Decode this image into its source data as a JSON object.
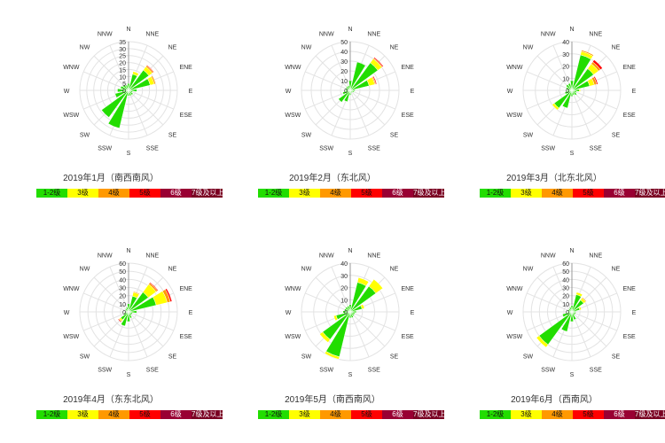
{
  "legend": {
    "items": [
      {
        "label": "1-2级",
        "color": "#22dd00"
      },
      {
        "label": "3级",
        "color": "#ffff00"
      },
      {
        "label": "4级",
        "color": "#ff9900"
      },
      {
        "label": "5级",
        "color": "#ff0000"
      },
      {
        "label": "6级",
        "color": "#990033"
      },
      {
        "label": "7级及以上",
        "color": "#7a0022"
      }
    ]
  },
  "directions": [
    "N",
    "NNE",
    "NE",
    "ENE",
    "E",
    "ESE",
    "SE",
    "SSE",
    "S",
    "SSW",
    "SW",
    "WSW",
    "W",
    "WNW",
    "NW",
    "NNW"
  ],
  "chart_data": [
    {
      "type": "rose",
      "title": "2019年1月（南西南风）",
      "rmax": 35,
      "ticks": [
        0,
        5,
        10,
        15,
        20,
        25,
        30,
        35
      ],
      "series": [
        {
          "name": "1-2级",
          "values": [
            5,
            12,
            18,
            16,
            6,
            3,
            4,
            4,
            4,
            28,
            24,
            10,
            8,
            6,
            5,
            4
          ]
        },
        {
          "name": "3级",
          "values": [
            0,
            2,
            3,
            3,
            0,
            0,
            0,
            0,
            0,
            0,
            0,
            0,
            0,
            0,
            0,
            0
          ]
        },
        {
          "name": "4级",
          "values": [
            0,
            0,
            1,
            1,
            0,
            0,
            0,
            0,
            0,
            0,
            0,
            0,
            0,
            0,
            0,
            0
          ]
        },
        {
          "name": "5级",
          "values": [
            0,
            0,
            0.5,
            0,
            0,
            0,
            0,
            0,
            0,
            0,
            0,
            0,
            0,
            0,
            0,
            0
          ]
        },
        {
          "name": "6级",
          "values": [
            0,
            0,
            0,
            0,
            0,
            0,
            0,
            0,
            0,
            0,
            0,
            0,
            0,
            0,
            0,
            0
          ]
        },
        {
          "name": "7级及以上",
          "values": [
            0,
            0,
            0,
            0,
            0,
            0,
            0,
            0,
            0,
            0,
            0,
            0,
            0,
            0,
            0,
            0
          ]
        }
      ]
    },
    {
      "type": "rose",
      "title": "2019年2月（东北风）",
      "rmax": 50,
      "ticks": [
        0,
        10,
        20,
        30,
        40,
        50
      ],
      "series": [
        {
          "name": "1-2级",
          "values": [
            10,
            30,
            35,
            20,
            5,
            4,
            3,
            3,
            5,
            12,
            15,
            8,
            5,
            5,
            5,
            5
          ]
        },
        {
          "name": "3级",
          "values": [
            0,
            0,
            5,
            6,
            0,
            0,
            0,
            0,
            0,
            0,
            0,
            0,
            0,
            0,
            0,
            0
          ]
        },
        {
          "name": "4级",
          "values": [
            0,
            0,
            1,
            1,
            0,
            0,
            0,
            0,
            0,
            0,
            0,
            0,
            0,
            0,
            0,
            0
          ]
        },
        {
          "name": "5级",
          "values": [
            0,
            0,
            1,
            1,
            0,
            0,
            0,
            0,
            0,
            0,
            0,
            0,
            0,
            0,
            0,
            0
          ]
        },
        {
          "name": "6级",
          "values": [
            0,
            0,
            0,
            0,
            0,
            0,
            0,
            0,
            0,
            0,
            0,
            0,
            0,
            0,
            0,
            0
          ]
        },
        {
          "name": "7级及以上",
          "values": [
            0,
            0,
            0,
            0,
            0,
            0,
            0,
            0,
            0,
            0,
            0,
            0,
            0,
            0,
            0,
            0
          ]
        }
      ]
    },
    {
      "type": "rose",
      "title": "2019年3月（北东北风）",
      "rmax": 40,
      "ticks": [
        0,
        10,
        20,
        30,
        40
      ],
      "series": [
        {
          "name": "1-2级",
          "values": [
            8,
            30,
            22,
            15,
            6,
            4,
            5,
            4,
            5,
            15,
            18,
            6,
            4,
            5,
            6,
            6
          ]
        },
        {
          "name": "3级",
          "values": [
            0,
            3,
            5,
            4,
            1,
            0,
            0,
            0,
            0,
            0,
            2,
            0,
            0,
            0,
            0,
            0
          ]
        },
        {
          "name": "4级",
          "values": [
            0,
            1,
            2,
            2,
            0,
            0,
            0,
            0,
            0,
            0,
            0,
            0,
            0,
            0,
            0,
            0
          ]
        },
        {
          "name": "5级",
          "values": [
            0,
            0,
            2,
            1,
            0,
            0,
            0,
            0,
            0,
            0,
            0,
            0,
            0,
            0,
            0,
            0
          ]
        },
        {
          "name": "6级",
          "values": [
            0,
            0,
            0,
            0,
            0,
            0,
            0,
            0,
            0,
            0,
            0,
            0,
            0,
            0,
            0,
            0
          ]
        },
        {
          "name": "7级及以上",
          "values": [
            0,
            0,
            0,
            0,
            0,
            0,
            0,
            0,
            0,
            0,
            0,
            0,
            0,
            0,
            0,
            0
          ]
        }
      ]
    },
    {
      "type": "rose",
      "title": "2019年4月（东东北风）",
      "rmax": 60,
      "ticks": [
        0,
        10,
        20,
        30,
        40,
        50,
        60
      ],
      "series": [
        {
          "name": "1-2级",
          "values": [
            10,
            20,
            30,
            35,
            10,
            5,
            5,
            8,
            12,
            18,
            12,
            6,
            4,
            4,
            5,
            6
          ]
        },
        {
          "name": "3级",
          "values": [
            0,
            5,
            12,
            14,
            0,
            0,
            0,
            0,
            0,
            0,
            2,
            0,
            0,
            0,
            0,
            0
          ]
        },
        {
          "name": "4级",
          "values": [
            0,
            1,
            2,
            4,
            0,
            0,
            0,
            0,
            0,
            0,
            1,
            0,
            0,
            0,
            0,
            0
          ]
        },
        {
          "name": "5级",
          "values": [
            0,
            0,
            1,
            2,
            0,
            0,
            0,
            0,
            0,
            0,
            1,
            0,
            0,
            0,
            0,
            0
          ]
        },
        {
          "name": "6级",
          "values": [
            0,
            0,
            0,
            0,
            0,
            0,
            0,
            0,
            0,
            0,
            0,
            0,
            0,
            0,
            0,
            0
          ]
        },
        {
          "name": "7级及以上",
          "values": [
            0,
            0,
            0,
            0,
            0,
            0,
            0,
            0,
            0,
            0,
            0,
            0,
            0,
            0,
            0,
            0
          ]
        }
      ]
    },
    {
      "type": "rose",
      "title": "2019年5月（南西南风）",
      "rmax": 40,
      "ticks": [
        0,
        10,
        20,
        30,
        40
      ],
      "series": [
        {
          "name": "1-2级",
          "values": [
            6,
            25,
            26,
            10,
            5,
            4,
            4,
            5,
            5,
            38,
            28,
            12,
            6,
            5,
            5,
            5
          ]
        },
        {
          "name": "3级",
          "values": [
            0,
            4,
            7,
            2,
            0,
            0,
            0,
            0,
            0,
            2,
            3,
            2,
            0,
            0,
            0,
            0
          ]
        },
        {
          "name": "4级",
          "values": [
            0,
            0,
            0,
            0,
            0,
            0,
            0,
            0,
            0,
            0,
            0,
            0,
            0,
            0,
            0,
            0
          ]
        },
        {
          "name": "5级",
          "values": [
            0,
            0,
            0,
            0,
            0,
            0,
            0,
            0,
            0,
            0,
            0,
            0,
            0,
            0,
            0,
            0
          ]
        },
        {
          "name": "6级",
          "values": [
            0,
            0,
            0,
            0,
            0,
            0,
            0,
            0,
            0,
            0,
            0,
            0,
            0,
            0,
            0,
            0
          ]
        },
        {
          "name": "7级及以上",
          "values": [
            0,
            0,
            0,
            0,
            0,
            0,
            0,
            0,
            0,
            0,
            0,
            0,
            0,
            0,
            0,
            0
          ]
        }
      ]
    },
    {
      "type": "rose",
      "title": "2019年6月（西南风）",
      "rmax": 60,
      "ticks": [
        0,
        10,
        20,
        30,
        40,
        50,
        60
      ],
      "series": [
        {
          "name": "1-2级",
          "values": [
            8,
            22,
            18,
            10,
            5,
            5,
            5,
            10,
            12,
            25,
            50,
            12,
            5,
            5,
            5,
            6
          ]
        },
        {
          "name": "3级",
          "values": [
            0,
            3,
            3,
            2,
            0,
            0,
            0,
            0,
            0,
            0,
            4,
            0,
            0,
            0,
            0,
            0
          ]
        },
        {
          "name": "4级",
          "values": [
            0,
            0,
            1,
            0,
            0,
            0,
            0,
            0,
            0,
            0,
            0,
            0,
            0,
            0,
            0,
            0
          ]
        },
        {
          "name": "5级",
          "values": [
            0,
            0,
            0,
            0,
            0,
            0,
            0,
            0,
            0,
            0,
            0,
            0,
            0,
            0,
            0,
            0
          ]
        },
        {
          "name": "6级",
          "values": [
            0,
            0,
            0,
            0,
            0,
            0,
            0,
            0,
            0,
            0,
            0,
            0,
            0,
            0,
            0,
            0
          ]
        },
        {
          "name": "7级及以上",
          "values": [
            0,
            0,
            0,
            0,
            0,
            0,
            0,
            0,
            0,
            0,
            0,
            0,
            0,
            0,
            0,
            0
          ]
        }
      ]
    }
  ]
}
